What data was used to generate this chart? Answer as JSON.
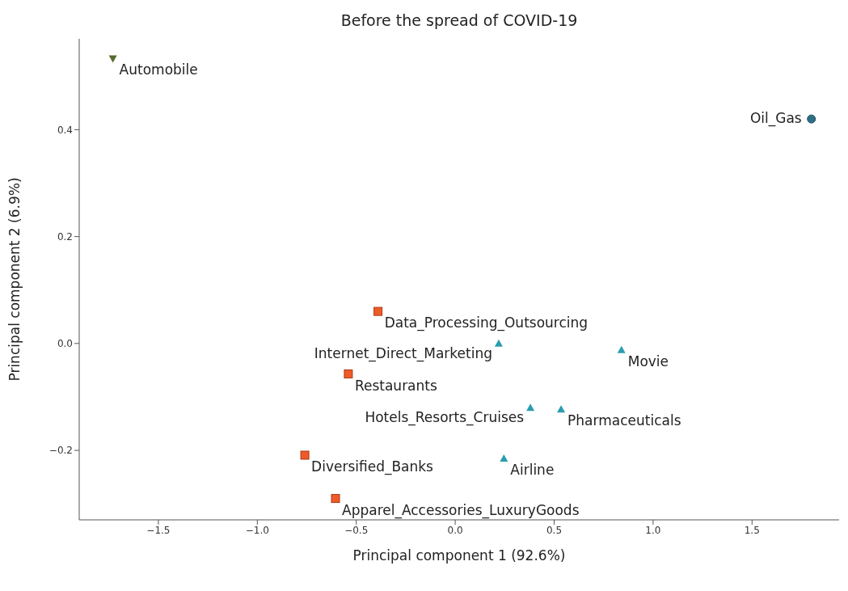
{
  "chart_data": {
    "type": "scatter",
    "title": "Before the spread of COVID-19",
    "xlabel": "Principal component 1 (92.6%)",
    "ylabel": "Principal component 2 (6.9%)",
    "xlim": [
      -1.9,
      1.94
    ],
    "xticks": [
      {
        "value": -1.5,
        "label": "−1.5"
      },
      {
        "value": -1.0,
        "label": "−1.0"
      },
      {
        "value": -0.5,
        "label": "−0.5"
      },
      {
        "value": 0.0,
        "label": "0.0"
      },
      0.5,
      {
        "value": 1.0,
        "label": "1.0"
      },
      1.5
    ],
    "ylim": [
      -0.33,
      0.57
    ],
    "yticks": [
      {
        "value": -0.2,
        "label": "−0.2"
      },
      {
        "value": 0.0,
        "label": "0.0"
      },
      0.2,
      0.4
    ],
    "grid": false,
    "legend": false,
    "series": [
      {
        "color": "#556b2f",
        "marker": "triangle-down",
        "x": [
          -1.73
        ],
        "values": [
          0.533
        ]
      },
      {
        "color": "#2e6f86",
        "marker": "circle",
        "x": [
          1.8
        ],
        "values": [
          0.42
        ]
      },
      {
        "color": "#f05a28",
        "marker": "square",
        "x": [
          -0.39,
          -0.54,
          -0.76,
          -0.605
        ],
        "values": [
          0.06,
          -0.057,
          -0.209,
          -0.29
        ]
      },
      {
        "color": "#2a9db0",
        "marker": "triangle",
        "x": [
          0.22,
          0.84,
          0.38,
          0.535,
          0.246
        ],
        "values": [
          0.0,
          -0.012,
          -0.12,
          -0.123,
          -0.215
        ]
      }
    ],
    "annotations": [
      {
        "text": "Automobile",
        "x": -1.73,
        "y": 0.533
      },
      {
        "text": "Oil_Gas",
        "x": 1.8,
        "y": 0.42
      },
      {
        "text": "Data_Processing_Outsourcing",
        "x": -0.39,
        "y": 0.06
      },
      {
        "text": "Restaurants",
        "x": -0.54,
        "y": -0.057
      },
      {
        "text": "Diversified_Banks",
        "x": -0.76,
        "y": -0.209
      },
      {
        "text": "Apparel_Accessories_LuxuryGoods",
        "x": -0.605,
        "y": -0.29
      },
      {
        "text": "Internet_Direct_Marketing",
        "x": 0.22,
        "y": 0.0
      },
      {
        "text": "Movie",
        "x": 0.84,
        "y": -0.012
      },
      {
        "text": "Hotels_Resorts_Cruises",
        "x": 0.38,
        "y": -0.12
      },
      {
        "text": "Pharmaceuticals",
        "x": 0.535,
        "y": -0.123
      },
      {
        "text": "Airline",
        "x": 0.246,
        "y": -0.215
      }
    ]
  }
}
